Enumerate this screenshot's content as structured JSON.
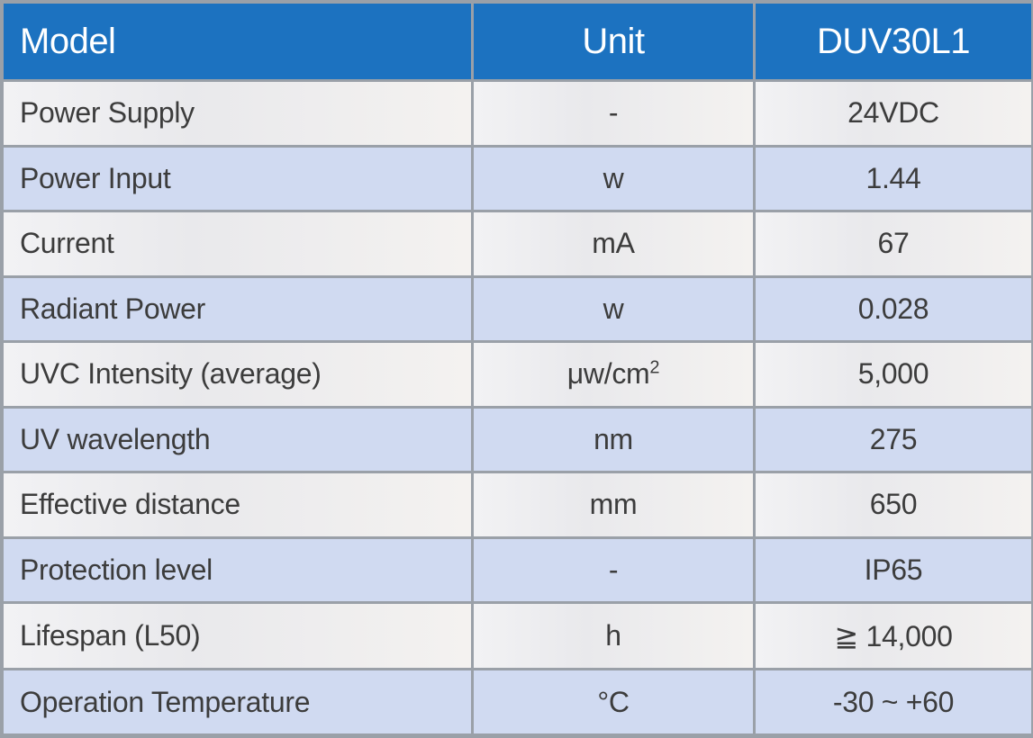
{
  "header": {
    "col_model": "Model",
    "col_unit": "Unit",
    "col_product": "DUV30L1"
  },
  "rows": [
    {
      "label": "Power Supply",
      "unit": "-",
      "value": "24VDC"
    },
    {
      "label": "Power Input",
      "unit": "w",
      "value": "1.44"
    },
    {
      "label": "Current",
      "unit": "mA",
      "value": "67"
    },
    {
      "label": "Radiant Power",
      "unit": "w",
      "value": "0.028"
    },
    {
      "label": "UVC Intensity (average)",
      "unit": "μw/cm",
      "unit_sup": "2",
      "value": "5,000"
    },
    {
      "label": "UV wavelength",
      "unit": "nm",
      "value": "275"
    },
    {
      "label": "Effective distance",
      "unit": "mm",
      "value": "650"
    },
    {
      "label": "Protection level",
      "unit": "-",
      "value": "IP65"
    },
    {
      "label": "Lifespan (L50)",
      "unit": "h",
      "value": "≧ 14,000"
    },
    {
      "label": "Operation Temperature",
      "unit": "°C",
      "value": "-30 ~ +60"
    }
  ]
}
